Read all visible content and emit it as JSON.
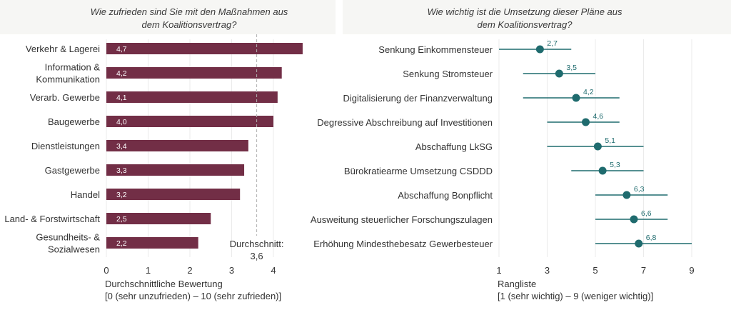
{
  "chart_data": [
    {
      "type": "bar",
      "orientation": "horizontal",
      "title": "Wie zufrieden sind Sie mit den Maßnahmen aus dem Koalitionsvertrag?",
      "title_lines": [
        "Wie zufrieden sind Sie mit den Maßnahmen aus",
        "dem Koalitionsvertrag?"
      ],
      "categories": [
        [
          "Verkehr & Lagerei"
        ],
        [
          "Information &",
          "Kommunikation"
        ],
        [
          "Verarb. Gewerbe"
        ],
        [
          "Baugewerbe"
        ],
        [
          "Dienstleistungen"
        ],
        [
          "Gastgewerbe"
        ],
        [
          "Handel"
        ],
        [
          "Land- & Forstwirtschaft"
        ],
        [
          "Gesundheits- &",
          "Sozialwesen"
        ]
      ],
      "values": [
        4.7,
        4.2,
        4.1,
        4.0,
        3.4,
        3.3,
        3.2,
        2.5,
        2.2
      ],
      "value_labels": [
        "4,7",
        "4,2",
        "4,1",
        "4,0",
        "3,4",
        "3,3",
        "3,2",
        "2,5",
        "2,2"
      ],
      "xlim": [
        0,
        4.8
      ],
      "xticks": [
        0,
        1,
        2,
        3,
        4
      ],
      "xlabel_lines": [
        "Durchschnittliche Bewertung",
        "[0 (sehr unzufrieden) – 10 (sehr zufrieden)]"
      ],
      "average": 3.6,
      "average_label_lines": [
        "Durchschnitt:",
        "3,6"
      ],
      "bar_color": "#722e46",
      "average_line_color": "#b0b0b0"
    },
    {
      "type": "scatter",
      "subtype": "dot-with-range",
      "title": "Wie wichtig ist die Umsetzung dieser Pläne aus dem Koalitionsvertrag?",
      "title_lines": [
        "Wie wichtig ist die Umsetzung dieser Pläne aus",
        "dem Koalitionsvertrag?"
      ],
      "categories": [
        "Senkung Einkommensteuer",
        "Senkung Stromsteuer",
        "Digitalisierung der Finanzverwaltung",
        "Degressive Abschreibung auf Investitionen",
        "Abschaffung LkSG",
        "Bürokratiearme Umsetzung CSDDD",
        "Abschaffung Bonpflicht",
        "Ausweitung steuerlicher Forschungszulagen",
        "Erhöhung Mindesthebesatz Gewerbesteuer"
      ],
      "values": [
        2.7,
        3.5,
        4.2,
        4.6,
        5.1,
        5.3,
        6.3,
        6.6,
        6.8
      ],
      "value_labels": [
        "2,7",
        "3,5",
        "4,2",
        "4,6",
        "5,1",
        "5,3",
        "6,3",
        "6,6",
        "6,8"
      ],
      "range_low": [
        1,
        2,
        2,
        3,
        3,
        4,
        5,
        5,
        5
      ],
      "range_high": [
        4,
        5,
        6,
        6,
        7,
        7,
        8,
        8,
        9
      ],
      "xlim": [
        1,
        9
      ],
      "xticks": [
        1,
        3,
        5,
        7,
        9
      ],
      "xlabel_lines": [
        "Rangliste",
        "[1 (sehr wichtig) – 9 (weniger wichtig)]"
      ],
      "color": "#1f6b6e"
    }
  ]
}
